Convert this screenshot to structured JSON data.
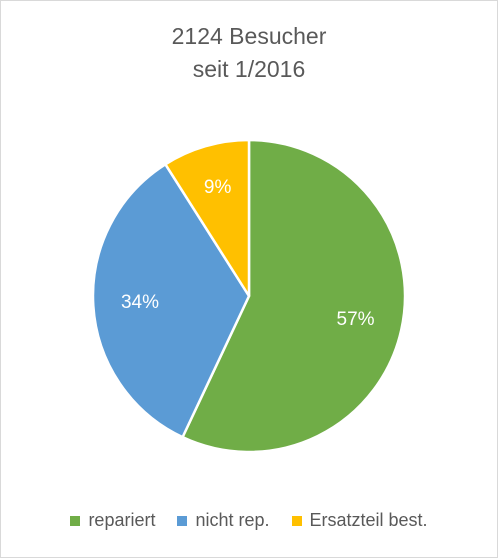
{
  "chart_data": {
    "type": "pie",
    "title": "2124 Besucher",
    "subtitle": "seit 1/2016",
    "slices": [
      {
        "label": "repariert",
        "value": 57,
        "display": "57%",
        "color": "#70ad47"
      },
      {
        "label": "nicht rep.",
        "value": 34,
        "display": "34%",
        "color": "#5b9bd5"
      },
      {
        "label": "Ersatzteil best.",
        "value": 9,
        "display": "9%",
        "color": "#ffc000"
      }
    ],
    "legend_position": "bottom",
    "label_color": "#ffffff",
    "border_color": "#ffffff"
  }
}
